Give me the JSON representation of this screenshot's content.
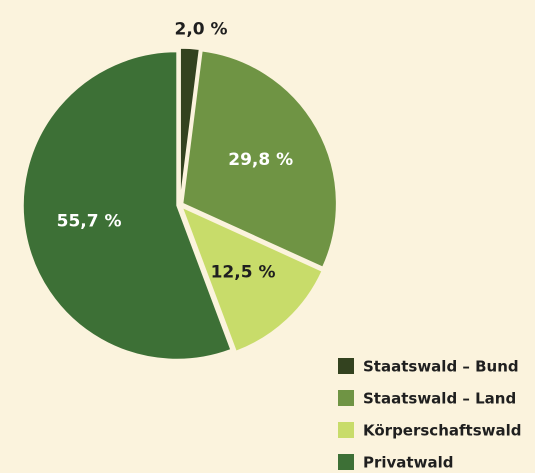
{
  "chart_data": {
    "type": "pie",
    "categories": [
      "Staatswald – Bund",
      "Staatswald – Land",
      "Körperschaftswald",
      "Privatwald"
    ],
    "values": [
      2.0,
      29.8,
      12.5,
      55.7
    ],
    "value_labels": [
      "2,0 %",
      "29,8 %",
      "12,5 %",
      "55,7 %"
    ],
    "colors": [
      "#33421f",
      "#6f9444",
      "#c8dc6a",
      "#3d7036"
    ],
    "legend": "bottom-right"
  }
}
